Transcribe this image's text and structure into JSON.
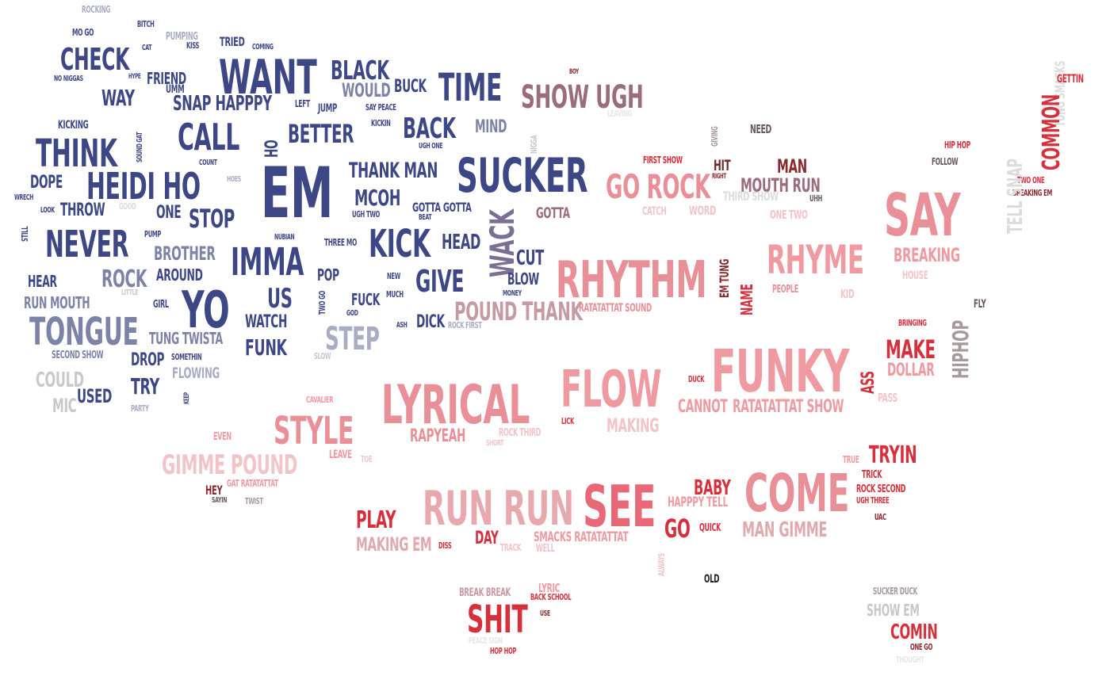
{
  "colors": {
    "navy": "#3d4786",
    "navy_dark": "#2f3a7a",
    "slate": "#7c83a6",
    "grey_blue": "#a9adc3",
    "grey": "#c8c8cc",
    "light_grey": "#dcdcdc",
    "dusty_rose": "#9b6b7e",
    "pink": "#e88f97",
    "light_pink": "#f2c4c8",
    "red": "#d6303d",
    "dark_red": "#8b2a2e",
    "salmon": "#ee9aa0",
    "black": "#222222",
    "taupe": "#a89a9a"
  },
  "words": [
    {
      "text": "ROCKING",
      "color": "#a9adc3"
    },
    {
      "text": "BITCH",
      "color": "#3d4786"
    },
    {
      "text": "MO GO",
      "color": "#3d4786"
    },
    {
      "text": "PUMPING",
      "color": "#a9adc3"
    },
    {
      "text": "KISS",
      "color": "#3d4786"
    },
    {
      "text": "TRIED",
      "color": "#3d4786"
    },
    {
      "text": "COMING",
      "color": "#3d4786"
    },
    {
      "text": "CAT",
      "color": "#3d4786"
    },
    {
      "text": "CHECK",
      "color": "#3d4786"
    },
    {
      "text": "WANT",
      "color": "#3d4786"
    },
    {
      "text": "BLACK",
      "color": "#3d4786"
    },
    {
      "text": "HYPE",
      "color": "#3d4786"
    },
    {
      "text": "NO NIGGAS",
      "color": "#3d4786"
    },
    {
      "text": "FRIEND",
      "color": "#3d4786"
    },
    {
      "text": "UMM",
      "color": "#3d4786"
    },
    {
      "text": "WOULD",
      "color": "#7c83a6"
    },
    {
      "text": "BUCK",
      "color": "#3d4786"
    },
    {
      "text": "TIME",
      "color": "#3d4786"
    },
    {
      "text": "SHOW UGH",
      "color": "#9b6b7e"
    },
    {
      "text": "BOY",
      "color": "#8b2a2e"
    },
    {
      "text": "WAY",
      "color": "#3d4786"
    },
    {
      "text": "SNAP HAPPPY",
      "color": "#3d4786"
    },
    {
      "text": "LEFT",
      "color": "#3d4786"
    },
    {
      "text": "JUMP",
      "color": "#3d4786"
    },
    {
      "text": "SAY PEACE",
      "color": "#3d4786"
    },
    {
      "text": "LEAVING",
      "color": "#e6e6e6"
    },
    {
      "text": "KICKING",
      "color": "#3d4786"
    },
    {
      "text": "SOUND GAT",
      "color": "#3d4786"
    },
    {
      "text": "CALL",
      "color": "#3d4786"
    },
    {
      "text": "HO",
      "color": "#3d4786"
    },
    {
      "text": "BETTER",
      "color": "#3d4786"
    },
    {
      "text": "KICKIN",
      "color": "#3d4786"
    },
    {
      "text": "BACK",
      "color": "#3d4786"
    },
    {
      "text": "MIND",
      "color": "#7c83a6"
    },
    {
      "text": "NIGGA",
      "color": "#c8c8cc"
    },
    {
      "text": "GIVING",
      "color": "#a89a9a"
    },
    {
      "text": "NEED",
      "color": "#6a5858"
    },
    {
      "text": "THINK",
      "color": "#3d4786"
    },
    {
      "text": "UGH ONE",
      "color": "#3d4786"
    },
    {
      "text": "COUNT",
      "color": "#3d4786"
    },
    {
      "text": "SUCKER",
      "color": "#3d4786"
    },
    {
      "text": "FIRST SHOW",
      "color": "#d6303d"
    },
    {
      "text": "HIT",
      "color": "#6a2a2a"
    },
    {
      "text": "RIGHT",
      "color": "#8b2a2e"
    },
    {
      "text": "MAN",
      "color": "#8b2a2e"
    },
    {
      "text": "HIP HOP",
      "color": "#d6303d"
    },
    {
      "text": "FOLLOW",
      "color": "#6a5858"
    },
    {
      "text": "DOPE",
      "color": "#3d4786"
    },
    {
      "text": "HEIDI HO",
      "color": "#3d4786"
    },
    {
      "text": "HOES",
      "color": "#a9adc3"
    },
    {
      "text": "EM",
      "color": "#3d4786"
    },
    {
      "text": "THANK MAN",
      "color": "#3d4786"
    },
    {
      "text": "GO ROCK",
      "color": "#e88f97"
    },
    {
      "text": "MOUTH RUN",
      "color": "#9b6b7e"
    },
    {
      "text": "THIRD SHOW",
      "color": "#dcdcdc"
    },
    {
      "text": "UHH",
      "color": "#6a5858"
    },
    {
      "text": "WRECH",
      "color": "#3d4786"
    },
    {
      "text": "LOOK",
      "color": "#3d4786"
    },
    {
      "text": "THROW",
      "color": "#3d4786"
    },
    {
      "text": "GOOD",
      "color": "#dcdcdc"
    },
    {
      "text": "ONE",
      "color": "#3d4786"
    },
    {
      "text": "STOP",
      "color": "#3d4786"
    },
    {
      "text": "MCOH",
      "color": "#3d4786"
    },
    {
      "text": "UGH TWO",
      "color": "#3d4786"
    },
    {
      "text": "GOTTA GOTTA",
      "color": "#3d4786"
    },
    {
      "text": "BEAT",
      "color": "#3d4786"
    },
    {
      "text": "GOTTA",
      "color": "#9b6b7e"
    },
    {
      "text": "CATCH",
      "color": "#f2c4c8"
    },
    {
      "text": "WORD",
      "color": "#f2c4c8"
    },
    {
      "text": "ONE TWO",
      "color": "#f2c4c8"
    },
    {
      "text": "SAY",
      "color": "#e88f97"
    },
    {
      "text": "STILL",
      "color": "#3d4786"
    },
    {
      "text": "PUMP",
      "color": "#3d4786"
    },
    {
      "text": "NEVER",
      "color": "#3d4786"
    },
    {
      "text": "NUBIAN",
      "color": "#3d4786"
    },
    {
      "text": "THREE MO",
      "color": "#3d4786"
    },
    {
      "text": "KICK",
      "color": "#3d4786"
    },
    {
      "text": "HEAD",
      "color": "#3d4786"
    },
    {
      "text": "WACK",
      "color": "#7c6f94"
    },
    {
      "text": "BROTHER",
      "color": "#7c83a6"
    },
    {
      "text": "IMMA",
      "color": "#3d4786"
    },
    {
      "text": "CUT",
      "color": "#3d4786"
    },
    {
      "text": "RHYTHM",
      "color": "#e88f97"
    },
    {
      "text": "EM TUNG",
      "color": "#8b2a2e"
    },
    {
      "text": "RHYME",
      "color": "#ee9aa0"
    },
    {
      "text": "BREAKING",
      "color": "#ee9aa0"
    },
    {
      "text": "HEAR",
      "color": "#3d4786"
    },
    {
      "text": "ROCK",
      "color": "#7c83a6"
    },
    {
      "text": "AROUND",
      "color": "#3d4786"
    },
    {
      "text": "POP",
      "color": "#3d4786"
    },
    {
      "text": "NEW",
      "color": "#3d4786"
    },
    {
      "text": "GIVE",
      "color": "#3d4786"
    },
    {
      "text": "BLOW",
      "color": "#3d4786"
    },
    {
      "text": "NAME",
      "color": "#d6303d"
    },
    {
      "text": "PEOPLE",
      "color": "#e88f97"
    },
    {
      "text": "KID",
      "color": "#f2c4c8"
    },
    {
      "text": "HOUSE",
      "color": "#f2c4c8"
    },
    {
      "text": "LITTLE",
      "color": "#c8c8cc"
    },
    {
      "text": "RUN MOUTH",
      "color": "#7c83a6"
    },
    {
      "text": "GIRL",
      "color": "#3d4786"
    },
    {
      "text": "YO",
      "color": "#3d4786"
    },
    {
      "text": "US",
      "color": "#3d4786"
    },
    {
      "text": "TWO GO",
      "color": "#3d4786"
    },
    {
      "text": "GOD",
      "color": "#3d4786"
    },
    {
      "text": "FUCK",
      "color": "#3d4786"
    },
    {
      "text": "MUCH",
      "color": "#3d4786"
    },
    {
      "text": "MONEY",
      "color": "#3d4786"
    },
    {
      "text": "POUND THANK",
      "color": "#c59aa3"
    },
    {
      "text": "RATATATTAT SOUND",
      "color": "#e88f97"
    },
    {
      "text": "FLY",
      "color": "#6a5858"
    },
    {
      "text": "WATCH",
      "color": "#3d4786"
    },
    {
      "text": "ASH",
      "color": "#3d4786"
    },
    {
      "text": "DICK",
      "color": "#3d4786"
    },
    {
      "text": "ROCK FIRST",
      "color": "#a9adc3"
    },
    {
      "text": "HIPHOP",
      "color": "#a89a9a"
    },
    {
      "text": "BRINGING",
      "color": "#d6303d"
    },
    {
      "text": "TONGUE",
      "color": "#7c83a6"
    },
    {
      "text": "TUNG TWISTA",
      "color": "#7c83a6"
    },
    {
      "text": "FUNK",
      "color": "#3d4786"
    },
    {
      "text": "STEP",
      "color": "#a9adc3"
    },
    {
      "text": "SLOW",
      "color": "#c8c8cc"
    },
    {
      "text": "SECOND SHOW",
      "color": "#7c83a6"
    },
    {
      "text": "DROP",
      "color": "#3d4786"
    },
    {
      "text": "SOMETHIN",
      "color": "#3d4786"
    },
    {
      "text": "FUNKY",
      "color": "#ee9aa0"
    },
    {
      "text": "MAKE",
      "color": "#d6303d"
    },
    {
      "text": "DOLLAR",
      "color": "#ee9aa0"
    },
    {
      "text": "ASS",
      "color": "#d6303d"
    },
    {
      "text": "FLOWING",
      "color": "#a9adc3"
    },
    {
      "text": "COULD",
      "color": "#c8c8cc"
    },
    {
      "text": "TRY",
      "color": "#3d4786"
    },
    {
      "text": "KEEP",
      "color": "#3d4786"
    },
    {
      "text": "USED",
      "color": "#3d4786"
    },
    {
      "text": "MIC",
      "color": "#c8c8cc"
    },
    {
      "text": "PARTY",
      "color": "#a9adc3"
    },
    {
      "text": "LYRICAL",
      "color": "#e88f97"
    },
    {
      "text": "FLOW",
      "color": "#ee9aa0"
    },
    {
      "text": "DUCK",
      "color": "#d6303d"
    },
    {
      "text": "CANNOT",
      "color": "#ee9aa0"
    },
    {
      "text": "RATATATTAT SHOW",
      "color": "#ee9aa0"
    },
    {
      "text": "PASS",
      "color": "#f2c4c8"
    },
    {
      "text": "CAVALIER",
      "color": "#ee9aa0"
    },
    {
      "text": "STYLE",
      "color": "#e88f97"
    },
    {
      "text": "LICK",
      "color": "#d6303d"
    },
    {
      "text": "MAKING",
      "color": "#f2c4c8"
    },
    {
      "text": "EVEN",
      "color": "#ee9aa0"
    },
    {
      "text": "RAPYEAH",
      "color": "#e88f97"
    },
    {
      "text": "ROCK THIRD",
      "color": "#f2c4c8"
    },
    {
      "text": "SHORT",
      "color": "#f2c4c8"
    },
    {
      "text": "GIMME POUND",
      "color": "#f2c4c8"
    },
    {
      "text": "LEAVE",
      "color": "#ee9aa0"
    },
    {
      "text": "TOE",
      "color": "#f2c4c8"
    },
    {
      "text": "TRUE",
      "color": "#ee9aa0"
    },
    {
      "text": "TRYIN",
      "color": "#d6303d"
    },
    {
      "text": "TRICK",
      "color": "#d6303d"
    },
    {
      "text": "HEY",
      "color": "#8b2a2e"
    },
    {
      "text": "GAT RATATATTAT",
      "color": "#ee9aa0"
    },
    {
      "text": "SAYIN",
      "color": "#6a5858"
    },
    {
      "text": "TWIST",
      "color": "#a89a9a"
    },
    {
      "text": "RUN RUN",
      "color": "#e8a9ae"
    },
    {
      "text": "SEE",
      "color": "#e86878"
    },
    {
      "text": "BABY",
      "color": "#d6303d"
    },
    {
      "text": "HAPPPY TELL",
      "color": "#ee9aa0"
    },
    {
      "text": "COME",
      "color": "#e88f97"
    },
    {
      "text": "ROCK SECOND",
      "color": "#d6303d"
    },
    {
      "text": "UGH THREE",
      "color": "#d6303d"
    },
    {
      "text": "PLAY",
      "color": "#d6303d"
    },
    {
      "text": "GO",
      "color": "#d6303d"
    },
    {
      "text": "QUICK",
      "color": "#d6303d"
    },
    {
      "text": "MAN GIMME",
      "color": "#e0a9ae"
    },
    {
      "text": "UAC",
      "color": "#8b2a2e"
    },
    {
      "text": "MAKING EM",
      "color": "#e0a9ae"
    },
    {
      "text": "DISS",
      "color": "#d6303d"
    },
    {
      "text": "DAY",
      "color": "#d6303d"
    },
    {
      "text": "TRACK",
      "color": "#f2c4c8"
    },
    {
      "text": "SMACKS RATATATTAT",
      "color": "#ee9aa0"
    },
    {
      "text": "WELL",
      "color": "#f2c4c8"
    },
    {
      "text": "ALWAYS",
      "color": "#f2c4c8"
    },
    {
      "text": "OLD",
      "color": "#222222"
    },
    {
      "text": "LYRIC",
      "color": "#ee9aa0"
    },
    {
      "text": "BREAK BREAK",
      "color": "#c59aa3"
    },
    {
      "text": "BACK SCHOOL",
      "color": "#d6303d"
    },
    {
      "text": "USE",
      "color": "#8b2a2e"
    },
    {
      "text": "SHIT",
      "color": "#d6303d"
    },
    {
      "text": "PEACE SIGN",
      "color": "#e6e6e6"
    },
    {
      "text": "HOP HOP",
      "color": "#d6303d"
    },
    {
      "text": "SUCKER DUCK",
      "color": "#a89a9a"
    },
    {
      "text": "SHOW EM",
      "color": "#c8c8cc"
    },
    {
      "text": "COMIN",
      "color": "#d6303d"
    },
    {
      "text": "ONE GO",
      "color": "#8b2a2e"
    },
    {
      "text": "THOUGHT",
      "color": "#e6e6e6"
    },
    {
      "text": "TUNG SMACKS",
      "color": "#dcdcdc"
    },
    {
      "text": "GETTIN",
      "color": "#d6303d"
    },
    {
      "text": "COMMON",
      "color": "#d6303d"
    },
    {
      "text": "TWO ONE",
      "color": "#d6303d"
    },
    {
      "text": "BREAKING EM",
      "color": "#8b2a2e"
    },
    {
      "text": "TELL SNAP",
      "color": "#dcdcdc"
    }
  ]
}
